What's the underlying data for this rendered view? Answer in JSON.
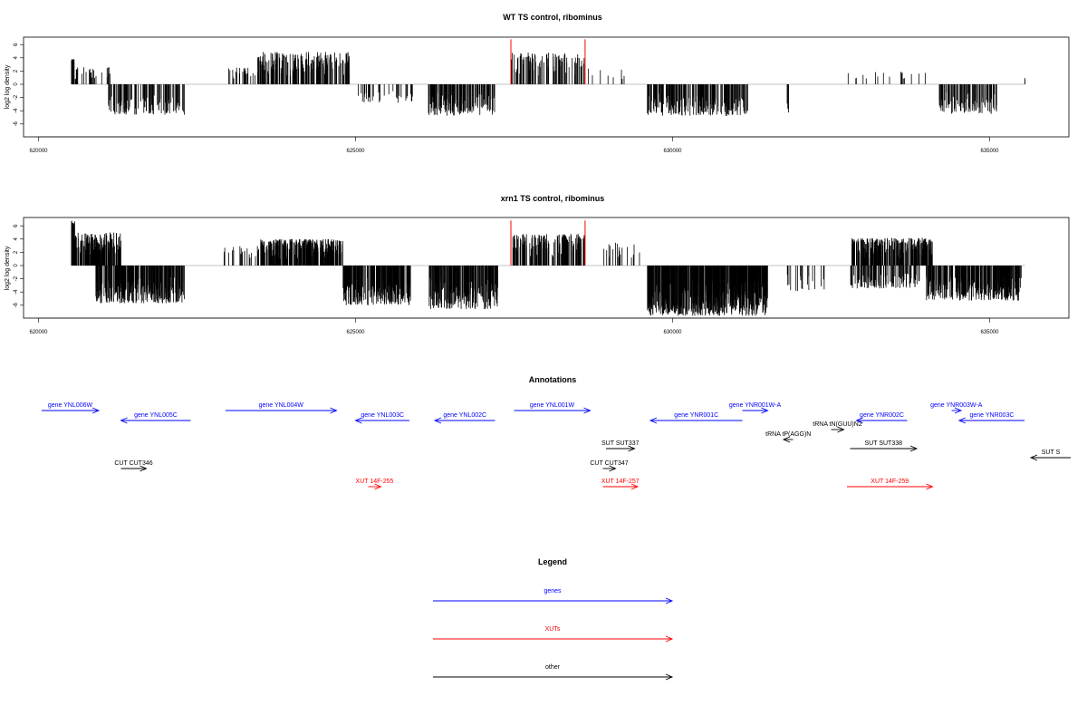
{
  "colors": {
    "gene": "#0000ff",
    "xut": "#ff0000",
    "other": "#000000",
    "peak": "#ff0000",
    "bar": "#000000"
  },
  "chart_data": [
    {
      "type": "bar",
      "title": "WT TS control, ribominus",
      "ylabel": "log2 log density",
      "xlim": [
        620000,
        635600
      ],
      "ylim": [
        -8,
        7
      ],
      "x_ticks": [
        "620000",
        "625000",
        "630000",
        "635000"
      ],
      "x_tick_values": [
        620000,
        625000,
        630000,
        635000
      ],
      "y_ticks": [
        "6",
        "4",
        "2",
        "0",
        "-2",
        "-4",
        "-6"
      ],
      "y_tick_values": [
        6,
        4,
        2,
        0,
        -2,
        -4,
        -6
      ],
      "peaks": [
        627450,
        628620
      ],
      "peak_height": 6.8,
      "zero_line_range": [
        620520,
        635560
      ],
      "regions": [
        {
          "start": 620520,
          "end": 620560,
          "sign": 1,
          "max": 3.8,
          "density": 4
        },
        {
          "start": 620560,
          "end": 621150,
          "sign": 1,
          "max": 2.6,
          "density": 0.05
        },
        {
          "start": 621100,
          "end": 622300,
          "sign": -1,
          "max": 4.6,
          "density": 0.09
        },
        {
          "start": 623000,
          "end": 623450,
          "sign": 1,
          "max": 2.6,
          "density": 0.05
        },
        {
          "start": 623450,
          "end": 624900,
          "sign": 1,
          "max": 4.9,
          "density": 0.12
        },
        {
          "start": 625000,
          "end": 625900,
          "sign": -1,
          "max": 2.8,
          "density": 0.04
        },
        {
          "start": 626150,
          "end": 627200,
          "sign": -1,
          "max": 4.8,
          "density": 0.14
        },
        {
          "start": 627450,
          "end": 628620,
          "sign": 1,
          "max": 4.8,
          "density": 0.08
        },
        {
          "start": 628650,
          "end": 629400,
          "sign": 1,
          "max": 2.4,
          "density": 0.01
        },
        {
          "start": 629600,
          "end": 631200,
          "sign": -1,
          "max": 4.8,
          "density": 0.13
        },
        {
          "start": 631800,
          "end": 631880,
          "sign": -1,
          "max": 4.6,
          "density": 0.05
        },
        {
          "start": 632600,
          "end": 634000,
          "sign": 1,
          "max": 2.0,
          "density": 0.012
        },
        {
          "start": 634200,
          "end": 635150,
          "sign": -1,
          "max": 4.5,
          "density": 0.1
        },
        {
          "start": 635550,
          "end": 635560,
          "sign": 1,
          "max": 1.6,
          "density": 0.2
        }
      ]
    },
    {
      "type": "bar",
      "title": "xrn1 TS control, ribominus",
      "ylabel": "log2 log density",
      "xlim": [
        620000,
        635600
      ],
      "ylim": [
        -8,
        7
      ],
      "x_ticks": [
        "620000",
        "625000",
        "630000",
        "635000"
      ],
      "x_tick_values": [
        620000,
        625000,
        630000,
        635000
      ],
      "y_ticks": [
        "6",
        "4",
        "2",
        "0",
        "-2",
        "-4",
        "-6"
      ],
      "y_tick_values": [
        6,
        4,
        2,
        0,
        -2,
        -4,
        -6
      ],
      "peaks": [
        627450,
        628620
      ],
      "peak_height": 6.8,
      "zero_line_range": [
        620520,
        635560
      ],
      "regions": [
        {
          "start": 620520,
          "end": 620580,
          "sign": 1,
          "max": 6.8,
          "density": 0.5
        },
        {
          "start": 620580,
          "end": 621300,
          "sign": 1,
          "max": 5.0,
          "density": 0.2
        },
        {
          "start": 620900,
          "end": 622300,
          "sign": -1,
          "max": 5.7,
          "density": 0.2
        },
        {
          "start": 622900,
          "end": 623500,
          "sign": 1,
          "max": 3.0,
          "density": 0.04
        },
        {
          "start": 623500,
          "end": 624800,
          "sign": 1,
          "max": 4.0,
          "density": 0.25
        },
        {
          "start": 624800,
          "end": 625900,
          "sign": -1,
          "max": 6.0,
          "density": 0.2
        },
        {
          "start": 626150,
          "end": 627250,
          "sign": -1,
          "max": 6.6,
          "density": 0.2
        },
        {
          "start": 627450,
          "end": 628620,
          "sign": 1,
          "max": 4.8,
          "density": 0.15
        },
        {
          "start": 628900,
          "end": 629500,
          "sign": 1,
          "max": 3.5,
          "density": 0.03
        },
        {
          "start": 629600,
          "end": 631500,
          "sign": -1,
          "max": 7.6,
          "density": 0.3
        },
        {
          "start": 631800,
          "end": 632400,
          "sign": -1,
          "max": 4.5,
          "density": 0.03
        },
        {
          "start": 632800,
          "end": 634100,
          "sign": 1,
          "max": 4.2,
          "density": 0.2
        },
        {
          "start": 632800,
          "end": 633900,
          "sign": -1,
          "max": 3.5,
          "density": 0.1
        },
        {
          "start": 634000,
          "end": 635500,
          "sign": -1,
          "max": 5.3,
          "density": 0.2
        }
      ]
    }
  ],
  "annotations": {
    "title": "Annotations",
    "xlim": [
      620000,
      635600
    ],
    "features": [
      {
        "label": "gene YNL006W",
        "type": "gene",
        "start": 620050,
        "end": 620950,
        "strand": "+",
        "row": 1
      },
      {
        "label": "gene YNL005C",
        "type": "gene",
        "start": 621300,
        "end": 622400,
        "strand": "-",
        "row": 2
      },
      {
        "label": "gene YNL004W",
        "type": "gene",
        "start": 622950,
        "end": 624700,
        "strand": "+",
        "row": 1
      },
      {
        "label": "gene YNL003C",
        "type": "gene",
        "start": 625000,
        "end": 625850,
        "strand": "-",
        "row": 2
      },
      {
        "label": "gene YNL002C",
        "type": "gene",
        "start": 626250,
        "end": 627200,
        "strand": "-",
        "row": 2
      },
      {
        "label": "gene YNL001W",
        "type": "gene",
        "start": 627500,
        "end": 628700,
        "strand": "+",
        "row": 1
      },
      {
        "label": "gene YNR001C",
        "type": "gene",
        "start": 629650,
        "end": 631100,
        "strand": "-",
        "row": 2
      },
      {
        "label": "gene YNR001W-A",
        "type": "gene",
        "start": 631100,
        "end": 631500,
        "strand": "+",
        "row": 1
      },
      {
        "label": "gene YNR002C",
        "type": "gene",
        "start": 632900,
        "end": 633700,
        "strand": "-",
        "row": 2
      },
      {
        "label": "gene YNR003W-A",
        "type": "gene",
        "start": 634400,
        "end": 634550,
        "strand": "+",
        "row": 1
      },
      {
        "label": "gene YNR003C",
        "type": "gene",
        "start": 634520,
        "end": 635550,
        "strand": "-",
        "row": 2
      },
      {
        "label": "tRNA tN(GUU)N2",
        "type": "other",
        "start": 632500,
        "end": 632700,
        "strand": "+",
        "row": 3
      },
      {
        "label": "tRNA tP(AGG)N",
        "type": "other",
        "start": 631750,
        "end": 631900,
        "strand": "-",
        "row": 4
      },
      {
        "label": "SUT SUT337",
        "type": "other",
        "start": 628950,
        "end": 629400,
        "strand": "+",
        "row": 5
      },
      {
        "label": "SUT SUT338",
        "type": "other",
        "start": 632800,
        "end": 633850,
        "strand": "+",
        "row": 5
      },
      {
        "label": "SUT S",
        "type": "other",
        "start": 635650,
        "end": 636400,
        "strand": "-",
        "row": 6
      },
      {
        "label": "CUT CUT346",
        "type": "other",
        "start": 621300,
        "end": 621700,
        "strand": "+",
        "row": 7
      },
      {
        "label": "CUT CUT347",
        "type": "other",
        "start": 628900,
        "end": 629100,
        "strand": "+",
        "row": 7
      },
      {
        "label": "XUT 14F-255",
        "type": "xut",
        "start": 625200,
        "end": 625400,
        "strand": "+",
        "row": 8
      },
      {
        "label": "XUT 14F-257",
        "type": "xut",
        "start": 628900,
        "end": 629450,
        "strand": "+",
        "row": 8
      },
      {
        "label": "XUT 14F-259",
        "type": "xut",
        "start": 632750,
        "end": 634100,
        "strand": "+",
        "row": 8
      }
    ]
  },
  "legend": {
    "title": "Legend",
    "items": [
      {
        "label": "genes",
        "type": "gene"
      },
      {
        "label": "XUTs",
        "type": "xut"
      },
      {
        "label": "other",
        "type": "other"
      }
    ]
  }
}
